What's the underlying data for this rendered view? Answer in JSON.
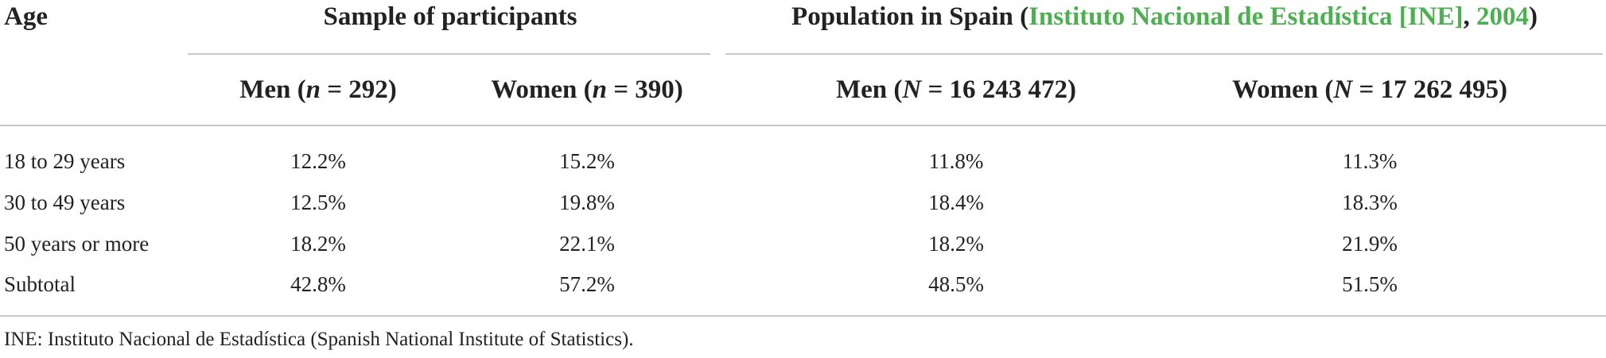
{
  "table": {
    "header_age": "Age",
    "group_sample": "Sample of participants",
    "group_population": {
      "prefix": "Population in Spain (",
      "link": "Instituto Nacional de Estadística [INE]",
      "sep": ", ",
      "year_link": "2004",
      "suffix": ")"
    },
    "columns": [
      {
        "label": "Men (",
        "var": "n",
        "eq": " = 292)"
      },
      {
        "label": "Women (",
        "var": "n",
        "eq": " = 390)"
      },
      {
        "label": "Men (",
        "var": "N",
        "eq": " = 16 243 472)"
      },
      {
        "label": "Women (",
        "var": "N",
        "eq": " = 17 262 495)"
      }
    ],
    "rows": [
      {
        "label": "18 to 29 years",
        "values": [
          "12.2%",
          "15.2%",
          "11.8%",
          "11.3%"
        ]
      },
      {
        "label": "30 to 49 years",
        "values": [
          "12.5%",
          "19.8%",
          "18.4%",
          "18.3%"
        ]
      },
      {
        "label": "50 years or more",
        "values": [
          "18.2%",
          "22.1%",
          "18.2%",
          "21.9%"
        ]
      },
      {
        "label": "Subtotal",
        "values": [
          "42.8%",
          "57.2%",
          "48.5%",
          "51.5%"
        ]
      }
    ],
    "footnote": "INE: Instituto Nacional de Estadística (Spanish National Institute of Statistics)."
  }
}
